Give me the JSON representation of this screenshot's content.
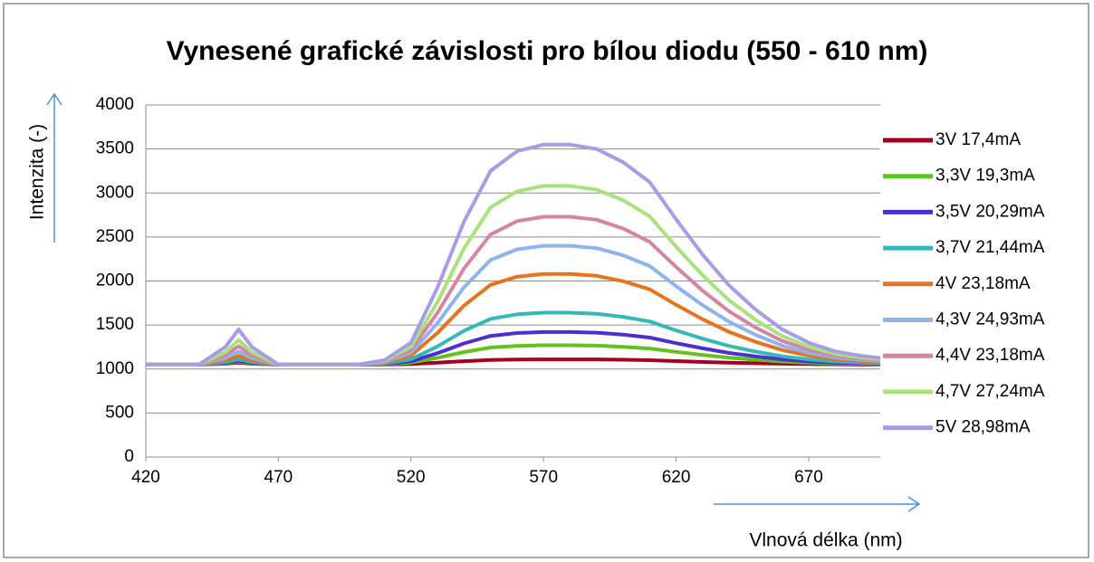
{
  "chart_data": {
    "type": "line",
    "title": "Vynesené grafické závislosti pro bílou diodu (550 - 610 nm)",
    "x_label": "Vlnová délka (nm)",
    "y_label": "Intenzita (-)",
    "xlim": [
      420,
      697
    ],
    "xticks": [
      420,
      470,
      520,
      570,
      620,
      670
    ],
    "ylim": [
      0,
      4000
    ],
    "yticks": [
      0,
      500,
      1000,
      1500,
      2000,
      2500,
      3000,
      3500,
      4000
    ],
    "grid": true,
    "legend": "right",
    "x": [
      420,
      430,
      440,
      450,
      455,
      460,
      470,
      480,
      490,
      500,
      510,
      520,
      530,
      540,
      550,
      560,
      570,
      580,
      590,
      600,
      610,
      620,
      630,
      640,
      650,
      660,
      670,
      680,
      690,
      697
    ],
    "series": [
      {
        "name": "3V 17,4mA",
        "color": "#a50021",
        "values": [
          1050,
          1050,
          1050,
          1060,
          1070,
          1060,
          1050,
          1050,
          1050,
          1050,
          1051,
          1056,
          1071,
          1089,
          1103,
          1108,
          1110,
          1110,
          1109,
          1105,
          1100,
          1090,
          1080,
          1072,
          1065,
          1060,
          1056,
          1054,
          1052,
          1052
        ]
      },
      {
        "name": "3,3V 19,3mA",
        "color": "#5fc21e",
        "values": [
          1050,
          1050,
          1050,
          1065,
          1080,
          1065,
          1050,
          1050,
          1050,
          1050,
          1054,
          1072,
          1127,
          1193,
          1244,
          1263,
          1270,
          1270,
          1266,
          1252,
          1233,
          1195,
          1160,
          1129,
          1105,
          1085,
          1072,
          1063,
          1059,
          1057
        ]
      },
      {
        "name": "3,5V 20,29mA",
        "color": "#4b2fcf",
        "values": [
          1050,
          1050,
          1050,
          1070,
          1090,
          1070,
          1050,
          1050,
          1050,
          1050,
          1057,
          1087,
          1180,
          1291,
          1376,
          1409,
          1420,
          1420,
          1413,
          1390,
          1357,
          1294,
          1235,
          1183,
          1143,
          1109,
          1087,
          1072,
          1065,
          1061
        ]
      },
      {
        "name": "3,7V 21,44mA",
        "color": "#35b8b8",
        "values": [
          1050,
          1050,
          1050,
          1080,
          1110,
          1080,
          1050,
          1050,
          1050,
          1050,
          1062,
          1109,
          1257,
          1434,
          1569,
          1622,
          1640,
          1640,
          1628,
          1593,
          1540,
          1439,
          1345,
          1262,
          1198,
          1144,
          1109,
          1085,
          1074,
          1068
        ]
      },
      {
        "name": "4V 23,18mA",
        "color": "#e8731e",
        "values": [
          1050,
          1050,
          1050,
          1100,
          1150,
          1100,
          1050,
          1050,
          1050,
          1050,
          1071,
          1153,
          1411,
          1720,
          1956,
          2049,
          2080,
          2080,
          2059,
          1998,
          1905,
          1730,
          1565,
          1421,
          1308,
          1215,
          1153,
          1112,
          1091,
          1081
        ]
      },
      {
        "name": "4,3V 24,93mA",
        "color": "#8db4f0",
        "values": [
          1050,
          1050,
          1050,
          1125,
          1200,
          1125,
          1050,
          1050,
          1050,
          1050,
          1077,
          1185,
          1523,
          1928,
          2238,
          2360,
          2400,
          2400,
          2373,
          2292,
          2171,
          1941,
          1725,
          1536,
          1388,
          1266,
          1185,
          1131,
          1104,
          1091
        ]
      },
      {
        "name": "4,4V 23,18mA",
        "color": "#d9849e",
        "values": [
          1050,
          1050,
          1050,
          1155,
          1260,
          1155,
          1050,
          1050,
          1050,
          1050,
          1084,
          1218,
          1638,
          2142,
          2528,
          2680,
          2730,
          2730,
          2696,
          2596,
          2444,
          2159,
          1890,
          1655,
          1470,
          1319,
          1218,
          1151,
          1117,
          1100
        ]
      },
      {
        "name": "4,7V 27,24mA",
        "color": "#a8e27a",
        "values": [
          1050,
          1050,
          1050,
          1190,
          1330,
          1190,
          1050,
          1050,
          1050,
          1050,
          1091,
          1253,
          1761,
          2370,
          2836,
          3019,
          3080,
          3080,
          3039,
          2918,
          2735,
          2390,
          2065,
          1781,
          1558,
          1375,
          1253,
          1172,
          1131,
          1111
        ]
      },
      {
        "name": "5V 28,98mA",
        "color": "#a59de6",
        "values": [
          1050,
          1050,
          1050,
          1250,
          1450,
          1250,
          1050,
          1050,
          1050,
          1050,
          1100,
          1300,
          1925,
          2675,
          3250,
          3475,
          3550,
          3550,
          3500,
          3350,
          3125,
          2700,
          2300,
          1950,
          1675,
          1450,
          1300,
          1200,
          1150,
          1125
        ]
      }
    ]
  }
}
